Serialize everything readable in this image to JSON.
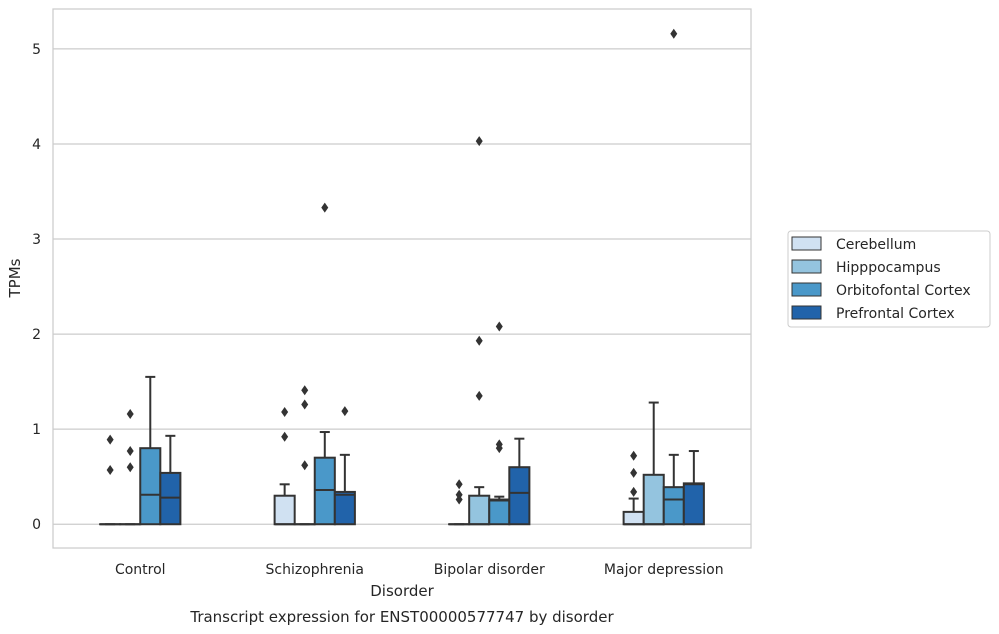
{
  "chart_data": {
    "type": "box",
    "xlabel": "Disorder",
    "ylabel": "TPMs",
    "caption": "Transcript expression for ENST00000577747 by disorder",
    "ylim": [
      -0.25,
      5.42
    ],
    "yticks": [
      0,
      1,
      2,
      3,
      4,
      5
    ],
    "grid": "horizontal",
    "legend_position": "right",
    "categories": [
      "Control",
      "Schizophrenia",
      "Bipolar disorder",
      "Major depression"
    ],
    "series": [
      {
        "name": "Cerebellum",
        "color": "#d0e1f2",
        "boxes": [
          {
            "whislo": 0,
            "q1": 0,
            "med": 0,
            "q3": 0,
            "whishi": 0,
            "fliers": [
              0.57,
              0.89
            ]
          },
          {
            "whislo": 0,
            "q1": 0,
            "med": 0,
            "q3": 0.3,
            "whishi": 0.42,
            "fliers": [
              0.92,
              1.18
            ]
          },
          {
            "whislo": 0,
            "q1": 0,
            "med": 0,
            "q3": 0,
            "whishi": 0,
            "fliers": [
              0.26,
              0.31,
              0.42
            ]
          },
          {
            "whislo": 0,
            "q1": 0,
            "med": 0,
            "q3": 0.13,
            "whishi": 0.27,
            "fliers": [
              0.34,
              0.54,
              0.72
            ]
          }
        ]
      },
      {
        "name": "Hipppocampus",
        "color": "#94c4df",
        "boxes": [
          {
            "whislo": 0,
            "q1": 0,
            "med": 0,
            "q3": 0,
            "whishi": 0,
            "fliers": [
              0.6,
              0.77,
              1.16
            ]
          },
          {
            "whislo": 0,
            "q1": 0,
            "med": 0,
            "q3": 0,
            "whishi": 0,
            "fliers": [
              0.62,
              1.26,
              1.41
            ]
          },
          {
            "whislo": 0,
            "q1": 0,
            "med": 0,
            "q3": 0.3,
            "whishi": 0.39,
            "fliers": [
              1.35,
              1.93,
              4.03
            ]
          },
          {
            "whislo": 0,
            "q1": 0,
            "med": 0,
            "q3": 0.52,
            "whishi": 1.28,
            "fliers": []
          }
        ]
      },
      {
        "name": "Orbitofontal Cortex",
        "color": "#4a98c9",
        "boxes": [
          {
            "whislo": 0,
            "q1": 0,
            "med": 0.31,
            "q3": 0.8,
            "whishi": 1.55,
            "fliers": []
          },
          {
            "whislo": 0,
            "q1": 0,
            "med": 0.36,
            "q3": 0.7,
            "whishi": 0.97,
            "fliers": [
              3.33
            ]
          },
          {
            "whislo": 0,
            "q1": 0,
            "med": 0.25,
            "q3": 0.26,
            "whishi": 0.29,
            "fliers": [
              0.8,
              0.84,
              2.08
            ]
          },
          {
            "whislo": 0,
            "q1": 0,
            "med": 0.26,
            "q3": 0.39,
            "whishi": 0.73,
            "fliers": [
              5.16
            ]
          }
        ]
      },
      {
        "name": "Prefrontal Cortex",
        "color": "#2163aa",
        "boxes": [
          {
            "whislo": 0,
            "q1": 0,
            "med": 0.28,
            "q3": 0.54,
            "whishi": 0.93,
            "fliers": []
          },
          {
            "whislo": 0,
            "q1": 0,
            "med": 0.31,
            "q3": 0.34,
            "whishi": 0.73,
            "fliers": [
              1.19
            ]
          },
          {
            "whislo": 0,
            "q1": 0,
            "med": 0.33,
            "q3": 0.6,
            "whishi": 0.9,
            "fliers": []
          },
          {
            "whislo": 0,
            "q1": 0,
            "med": 0.42,
            "q3": 0.43,
            "whishi": 0.77,
            "fliers": []
          }
        ]
      }
    ]
  }
}
